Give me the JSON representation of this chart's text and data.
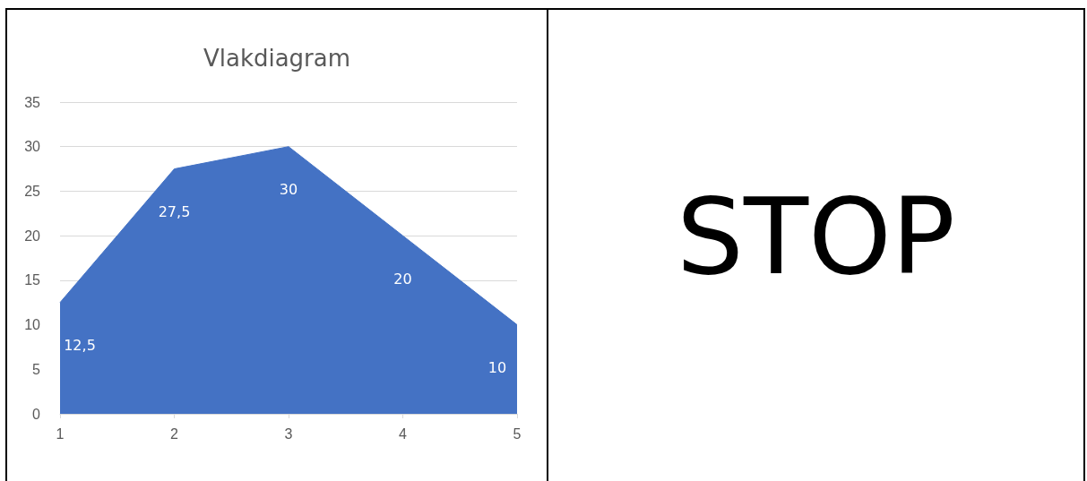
{
  "chart_data": {
    "type": "area",
    "title": "Vlakdiagram",
    "categories": [
      "1",
      "2",
      "3",
      "4",
      "5"
    ],
    "series": [
      {
        "color": "#4472c4",
        "values": [
          12.5,
          27.5,
          30,
          20,
          10
        ],
        "value_labels": [
          "12,5",
          "27,5",
          "30",
          "20",
          "10"
        ]
      }
    ],
    "ylim": [
      0,
      35
    ],
    "yticks": [
      0,
      5,
      10,
      15,
      20,
      25,
      30,
      35
    ],
    "grid": "y",
    "marker": "none",
    "annotations": [
      "STOP"
    ]
  }
}
